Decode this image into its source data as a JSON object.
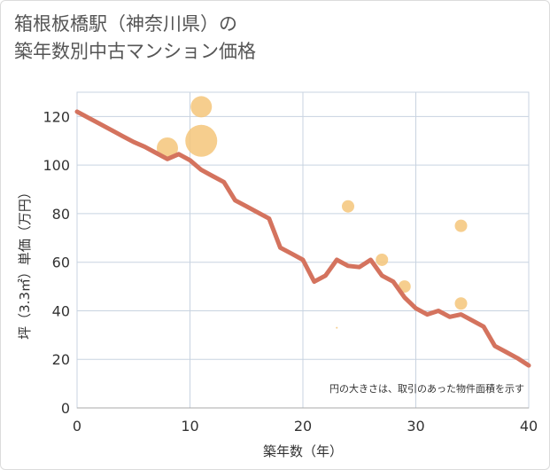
{
  "title_line1": "箱根板橋駅（神奈川県）の",
  "title_line2": "築年数別中古マンション価格",
  "chart_data": {
    "type": "scatter",
    "title": "箱根板橋駅（神奈川県）の築年数別中古マンション価格",
    "xlabel": "築年数（年）",
    "ylabel": "坪（3.3㎡）単価（万円）",
    "xlim": [
      0,
      40
    ],
    "ylim": [
      0,
      130
    ],
    "x_ticks": [
      0,
      10,
      20,
      30,
      40
    ],
    "y_ticks": [
      0,
      20,
      40,
      60,
      80,
      100,
      120
    ],
    "grid": true,
    "note": "円の大きさは、取引のあった物件面積を示す",
    "colors": {
      "line": "#d4735e",
      "bubble": "#f5c57a",
      "grid": "#c8d3e0"
    },
    "series": [
      {
        "type": "line",
        "points": [
          [
            0,
            122
          ],
          [
            1,
            119.5
          ],
          [
            2,
            117
          ],
          [
            3,
            114.5
          ],
          [
            4,
            112
          ],
          [
            5,
            109.5
          ],
          [
            6,
            107.5
          ],
          [
            7,
            105
          ],
          [
            8,
            102.5
          ],
          [
            9,
            104.5
          ],
          [
            10,
            102
          ],
          [
            11,
            98
          ],
          [
            12,
            95.5
          ],
          [
            13,
            93
          ],
          [
            14,
            85.5
          ],
          [
            15,
            83
          ],
          [
            16,
            80.5
          ],
          [
            17,
            78
          ],
          [
            18,
            66
          ],
          [
            19,
            63.5
          ],
          [
            20,
            61
          ],
          [
            21,
            52
          ],
          [
            22,
            54.5
          ],
          [
            23,
            61
          ],
          [
            24,
            58.5
          ],
          [
            25,
            58
          ],
          [
            26,
            61
          ],
          [
            27,
            54.5
          ],
          [
            28,
            52
          ],
          [
            29,
            45.5
          ],
          [
            30,
            41
          ],
          [
            31,
            38.5
          ],
          [
            32,
            40
          ],
          [
            33,
            37.5
          ],
          [
            34,
            38.5
          ],
          [
            35,
            36
          ],
          [
            36,
            33.5
          ],
          [
            37,
            25.5
          ],
          [
            38,
            23
          ],
          [
            39,
            20.5
          ],
          [
            40,
            17.5
          ]
        ]
      },
      {
        "type": "bubble",
        "points": [
          {
            "x": 8,
            "y": 107,
            "size": 12
          },
          {
            "x": 11,
            "y": 124,
            "size": 12
          },
          {
            "x": 11,
            "y": 110,
            "size": 18
          },
          {
            "x": 23,
            "y": 33,
            "size": 1
          },
          {
            "x": 24,
            "y": 83,
            "size": 7
          },
          {
            "x": 27,
            "y": 61,
            "size": 7
          },
          {
            "x": 29,
            "y": 50,
            "size": 7
          },
          {
            "x": 34,
            "y": 75,
            "size": 7
          },
          {
            "x": 34,
            "y": 43,
            "size": 7
          }
        ]
      }
    ]
  }
}
